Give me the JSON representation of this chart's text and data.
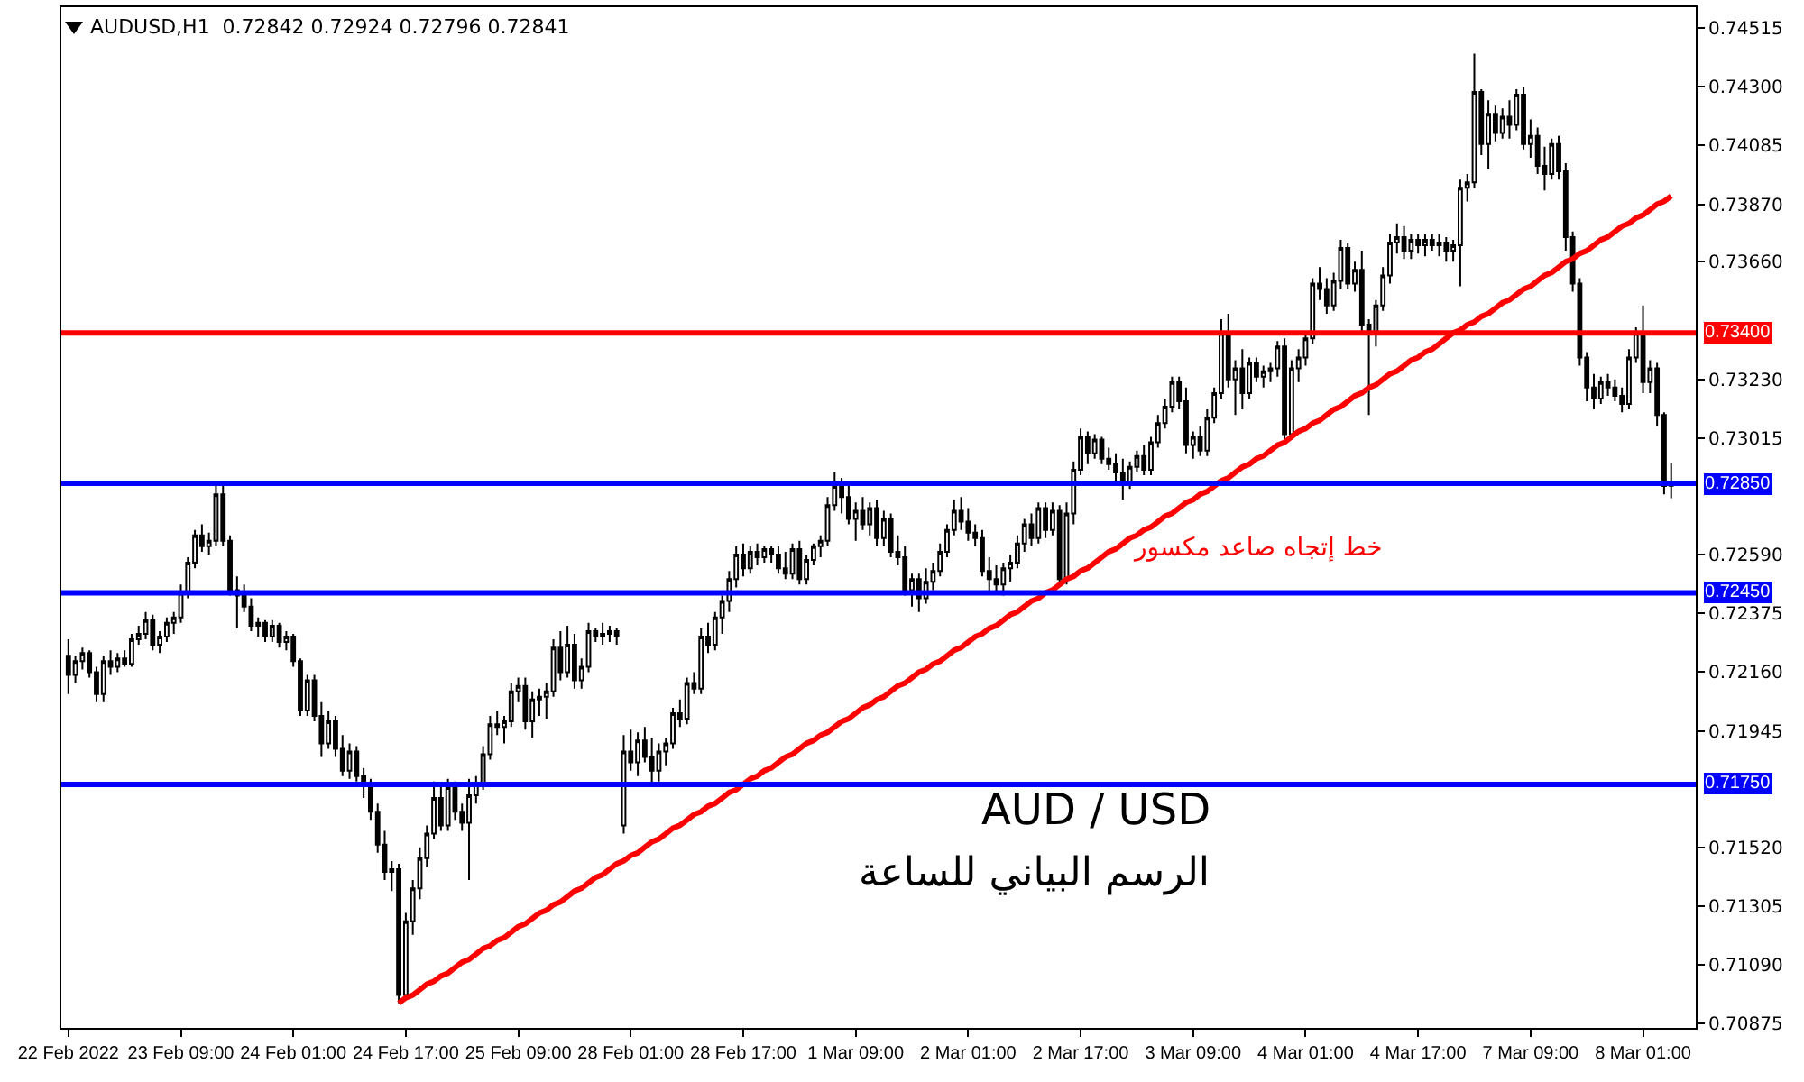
{
  "chart_data": {
    "type": "candlestick",
    "title": "AUDUSD,H1  0.72842 0.72924 0.72796 0.72841",
    "categories": [
      "22 Feb 2022",
      null,
      null,
      null,
      null,
      null,
      null,
      null,
      null,
      null,
      null,
      null,
      null,
      null,
      null,
      null,
      "23 Feb 09:00",
      null,
      null,
      null,
      null,
      null,
      null,
      null,
      null,
      null,
      null,
      null,
      null,
      null,
      null,
      null,
      "24 Feb 01:00",
      null,
      null,
      null,
      null,
      null,
      null,
      null,
      null,
      null,
      null,
      null,
      null,
      null,
      null,
      null,
      "24 Feb 17:00",
      null,
      null,
      null,
      null,
      null,
      null,
      null,
      null,
      null,
      null,
      null,
      null,
      null,
      null,
      null,
      "25 Feb 09:00",
      null,
      null,
      null,
      null,
      null,
      null,
      null,
      null,
      null,
      null,
      null,
      null,
      null,
      null,
      null,
      "28 Feb 01:00",
      null,
      null,
      null,
      null,
      null,
      null,
      null,
      null,
      null,
      null,
      null,
      null,
      null,
      null,
      null,
      "28 Feb 17:00",
      null,
      null,
      null,
      null,
      null,
      null,
      null,
      null,
      null,
      null,
      null,
      null,
      null,
      null,
      null,
      "1 Mar 09:00",
      null,
      null,
      null,
      null,
      null,
      null,
      null,
      null,
      null,
      null,
      null,
      null,
      null,
      null,
      null,
      "2 Mar 01:00",
      null,
      null,
      null,
      null,
      null,
      null,
      null,
      null,
      null,
      null,
      null,
      null,
      null,
      null,
      null,
      "2 Mar 17:00",
      null,
      null,
      null,
      null,
      null,
      null,
      null,
      null,
      null,
      null,
      null,
      null,
      null,
      null,
      null,
      "3 Mar 09:00",
      null,
      null,
      null,
      null,
      null,
      null,
      null,
      null,
      null,
      null,
      null,
      null,
      null,
      null,
      null,
      "4 Mar 01:00",
      null,
      null,
      null,
      null,
      null,
      null,
      null,
      null,
      null,
      null,
      null,
      null,
      null,
      null,
      null,
      "4 Mar 17:00",
      null,
      null,
      null,
      null,
      null,
      null,
      null,
      null,
      null,
      null,
      null,
      null,
      null,
      null,
      null,
      "7 Mar 09:00",
      null,
      null,
      null,
      null,
      null,
      null,
      null,
      null,
      null,
      null,
      null,
      null,
      null,
      null,
      null,
      "8 Mar 01:00",
      null,
      null,
      null,
      null
    ],
    "ohlc": [
      [
        0.7222,
        0.7228,
        0.7208,
        0.7215
      ],
      [
        0.7215,
        0.7222,
        0.7212,
        0.722
      ],
      [
        0.722,
        0.7225,
        0.7217,
        0.7223
      ],
      [
        0.7223,
        0.7224,
        0.7214,
        0.7216
      ],
      [
        0.7216,
        0.7218,
        0.7205,
        0.7208
      ],
      [
        0.7208,
        0.7222,
        0.7205,
        0.722
      ],
      [
        0.722,
        0.7224,
        0.7215,
        0.7218
      ],
      [
        0.7218,
        0.7223,
        0.7216,
        0.7221
      ],
      [
        0.7221,
        0.7224,
        0.7218,
        0.7219
      ],
      [
        0.7219,
        0.723,
        0.7218,
        0.7228
      ],
      [
        0.7228,
        0.7233,
        0.7226,
        0.723
      ],
      [
        0.723,
        0.7238,
        0.7228,
        0.7235
      ],
      [
        0.7235,
        0.7237,
        0.7224,
        0.7226
      ],
      [
        0.7226,
        0.7231,
        0.7223,
        0.7229
      ],
      [
        0.7229,
        0.7236,
        0.7227,
        0.7234
      ],
      [
        0.7234,
        0.7238,
        0.723,
        0.7236
      ],
      [
        0.7236,
        0.7248,
        0.7234,
        0.7245
      ],
      [
        0.7245,
        0.7258,
        0.7243,
        0.7256
      ],
      [
        0.7256,
        0.7268,
        0.7254,
        0.7266
      ],
      [
        0.7266,
        0.727,
        0.726,
        0.7262
      ],
      [
        0.7262,
        0.7267,
        0.7259,
        0.7264
      ],
      [
        0.7264,
        0.7284,
        0.7262,
        0.7281
      ],
      [
        0.7281,
        0.7284,
        0.7262,
        0.7264
      ],
      [
        0.7264,
        0.7266,
        0.7244,
        0.7246
      ],
      [
        0.7246,
        0.7251,
        0.7232,
        0.7244
      ],
      [
        0.7244,
        0.7248,
        0.7238,
        0.724
      ],
      [
        0.724,
        0.7243,
        0.7231,
        0.7233
      ],
      [
        0.7233,
        0.7236,
        0.7229,
        0.7234
      ],
      [
        0.7234,
        0.7235,
        0.7227,
        0.7229
      ],
      [
        0.7229,
        0.7235,
        0.7227,
        0.7233
      ],
      [
        0.7233,
        0.7234,
        0.7225,
        0.7227
      ],
      [
        0.7227,
        0.7231,
        0.7224,
        0.7229
      ],
      [
        0.7229,
        0.723,
        0.7218,
        0.722
      ],
      [
        0.722,
        0.7221,
        0.72,
        0.7202
      ],
      [
        0.7202,
        0.7215,
        0.72,
        0.7213
      ],
      [
        0.7213,
        0.7215,
        0.7198,
        0.72
      ],
      [
        0.72,
        0.7205,
        0.7185,
        0.719
      ],
      [
        0.719,
        0.7202,
        0.7188,
        0.7198
      ],
      [
        0.7198,
        0.72,
        0.7185,
        0.7188
      ],
      [
        0.7188,
        0.7193,
        0.7178,
        0.718
      ],
      [
        0.718,
        0.719,
        0.7177,
        0.7187
      ],
      [
        0.7187,
        0.7189,
        0.7176,
        0.7178
      ],
      [
        0.7178,
        0.7181,
        0.717,
        0.7175
      ],
      [
        0.7175,
        0.7177,
        0.7162,
        0.7165
      ],
      [
        0.7165,
        0.7168,
        0.715,
        0.7153
      ],
      [
        0.7153,
        0.7158,
        0.714,
        0.7143
      ],
      [
        0.7143,
        0.7147,
        0.7136,
        0.7144
      ],
      [
        0.7144,
        0.7146,
        0.7095,
        0.7098
      ],
      [
        0.7098,
        0.7128,
        0.7096,
        0.7125
      ],
      [
        0.7125,
        0.714,
        0.712,
        0.7137
      ],
      [
        0.7137,
        0.7152,
        0.7133,
        0.7148
      ],
      [
        0.7148,
        0.716,
        0.7145,
        0.7157
      ],
      [
        0.7157,
        0.7176,
        0.7155,
        0.717
      ],
      [
        0.717,
        0.7175,
        0.7158,
        0.716
      ],
      [
        0.716,
        0.7177,
        0.7158,
        0.7174
      ],
      [
        0.7174,
        0.7176,
        0.7162,
        0.7165
      ],
      [
        0.7165,
        0.7168,
        0.7158,
        0.7161
      ],
      [
        0.7161,
        0.7177,
        0.714,
        0.7171
      ],
      [
        0.7171,
        0.7178,
        0.7168,
        0.7175
      ],
      [
        0.7175,
        0.7189,
        0.7173,
        0.7186
      ],
      [
        0.7186,
        0.72,
        0.7184,
        0.7197
      ],
      [
        0.7197,
        0.7202,
        0.7193,
        0.7196
      ],
      [
        0.7196,
        0.72,
        0.719,
        0.7198
      ],
      [
        0.7198,
        0.7212,
        0.7196,
        0.7209
      ],
      [
        0.7209,
        0.7214,
        0.7205,
        0.7211
      ],
      [
        0.7211,
        0.7214,
        0.7195,
        0.7198
      ],
      [
        0.7198,
        0.7209,
        0.7192,
        0.7206
      ],
      [
        0.7206,
        0.721,
        0.72,
        0.7207
      ],
      [
        0.7207,
        0.7212,
        0.7199,
        0.7209
      ],
      [
        0.7209,
        0.7228,
        0.7207,
        0.7225
      ],
      [
        0.7225,
        0.7231,
        0.7213,
        0.7216
      ],
      [
        0.7216,
        0.7233,
        0.7214,
        0.7226
      ],
      [
        0.7226,
        0.723,
        0.721,
        0.7213
      ],
      [
        0.7213,
        0.7221,
        0.721,
        0.7218
      ],
      [
        0.7218,
        0.7234,
        0.7216,
        0.7231
      ],
      [
        0.7231,
        0.7232,
        0.7227,
        0.7229
      ],
      [
        0.7229,
        0.7234,
        0.7226,
        0.723
      ],
      [
        0.723,
        0.7233,
        0.7227,
        0.7231
      ],
      [
        0.7231,
        0.7232,
        0.7226,
        0.7229
      ],
      [
        0.716,
        0.7193,
        0.7157,
        0.7187
      ],
      [
        0.7187,
        0.7195,
        0.718,
        0.7183
      ],
      [
        0.7183,
        0.7194,
        0.7178,
        0.7191
      ],
      [
        0.7191,
        0.7196,
        0.7183,
        0.7185
      ],
      [
        0.7185,
        0.7192,
        0.7174,
        0.718
      ],
      [
        0.718,
        0.719,
        0.7176,
        0.7187
      ],
      [
        0.7187,
        0.7192,
        0.7182,
        0.719
      ],
      [
        0.719,
        0.7203,
        0.7188,
        0.7201
      ],
      [
        0.7201,
        0.7206,
        0.7196,
        0.7199
      ],
      [
        0.7199,
        0.7214,
        0.7197,
        0.7212
      ],
      [
        0.7212,
        0.7216,
        0.7208,
        0.721
      ],
      [
        0.721,
        0.7232,
        0.7208,
        0.7229
      ],
      [
        0.7229,
        0.7234,
        0.7223,
        0.7226
      ],
      [
        0.7226,
        0.7238,
        0.7224,
        0.7236
      ],
      [
        0.7236,
        0.7244,
        0.723,
        0.7242
      ],
      [
        0.7242,
        0.7253,
        0.7238,
        0.725
      ],
      [
        0.725,
        0.7262,
        0.7247,
        0.7259
      ],
      [
        0.7259,
        0.7263,
        0.7251,
        0.7254
      ],
      [
        0.7254,
        0.7262,
        0.7252,
        0.726
      ],
      [
        0.726,
        0.7263,
        0.7255,
        0.7258
      ],
      [
        0.7258,
        0.7262,
        0.7256,
        0.7261
      ],
      [
        0.7261,
        0.7262,
        0.7256,
        0.7259
      ],
      [
        0.7259,
        0.7262,
        0.7252,
        0.7254
      ],
      [
        0.7254,
        0.726,
        0.725,
        0.7252
      ],
      [
        0.7252,
        0.7263,
        0.725,
        0.7261
      ],
      [
        0.7261,
        0.7264,
        0.7248,
        0.725
      ],
      [
        0.725,
        0.7259,
        0.7248,
        0.7257
      ],
      [
        0.7257,
        0.7263,
        0.7255,
        0.7262
      ],
      [
        0.7262,
        0.7266,
        0.7258,
        0.7264
      ],
      [
        0.7264,
        0.728,
        0.7262,
        0.7277
      ],
      [
        0.7277,
        0.7289,
        0.7275,
        0.7284
      ],
      [
        0.7284,
        0.7287,
        0.7274,
        0.728
      ],
      [
        0.728,
        0.7286,
        0.727,
        0.7272
      ],
      [
        0.7272,
        0.7278,
        0.7264,
        0.7275
      ],
      [
        0.7275,
        0.728,
        0.7268,
        0.727
      ],
      [
        0.727,
        0.7278,
        0.7266,
        0.7276
      ],
      [
        0.7276,
        0.7279,
        0.7262,
        0.7265
      ],
      [
        0.7265,
        0.7275,
        0.7262,
        0.7272
      ],
      [
        0.7272,
        0.7274,
        0.7258,
        0.726
      ],
      [
        0.726,
        0.7266,
        0.7255,
        0.7258
      ],
      [
        0.7258,
        0.7262,
        0.7244,
        0.7246
      ],
      [
        0.7246,
        0.7252,
        0.724,
        0.725
      ],
      [
        0.725,
        0.7252,
        0.7238,
        0.7243
      ],
      [
        0.7243,
        0.7254,
        0.7241,
        0.7249
      ],
      [
        0.7249,
        0.7256,
        0.7246,
        0.7253
      ],
      [
        0.7253,
        0.7263,
        0.7251,
        0.726
      ],
      [
        0.726,
        0.727,
        0.7258,
        0.7268
      ],
      [
        0.7268,
        0.7279,
        0.7266,
        0.7275
      ],
      [
        0.7275,
        0.728,
        0.7268,
        0.7271
      ],
      [
        0.7271,
        0.7276,
        0.7264,
        0.7267
      ],
      [
        0.7267,
        0.727,
        0.7262,
        0.7265
      ],
      [
        0.7265,
        0.7268,
        0.7251,
        0.7253
      ],
      [
        0.7253,
        0.7258,
        0.7245,
        0.725
      ],
      [
        0.725,
        0.7255,
        0.7245,
        0.7248
      ],
      [
        0.7248,
        0.7256,
        0.7244,
        0.7254
      ],
      [
        0.7254,
        0.7259,
        0.7249,
        0.7256
      ],
      [
        0.7256,
        0.7266,
        0.7254,
        0.7263
      ],
      [
        0.7263,
        0.7272,
        0.726,
        0.727
      ],
      [
        0.727,
        0.7274,
        0.7262,
        0.7265
      ],
      [
        0.7265,
        0.7278,
        0.7263,
        0.7276
      ],
      [
        0.7276,
        0.7278,
        0.7265,
        0.7268
      ],
      [
        0.7268,
        0.7278,
        0.7266,
        0.7275
      ],
      [
        0.7275,
        0.7277,
        0.7248,
        0.725
      ],
      [
        0.725,
        0.7278,
        0.7248,
        0.7274
      ],
      [
        0.7274,
        0.7293,
        0.727,
        0.729
      ],
      [
        0.729,
        0.7305,
        0.7288,
        0.7302
      ],
      [
        0.7302,
        0.7304,
        0.7292,
        0.7296
      ],
      [
        0.7296,
        0.7303,
        0.7294,
        0.7301
      ],
      [
        0.7301,
        0.7302,
        0.7292,
        0.7294
      ],
      [
        0.7294,
        0.7298,
        0.729,
        0.7292
      ],
      [
        0.7292,
        0.7296,
        0.7286,
        0.7289
      ],
      [
        0.7289,
        0.7294,
        0.7279,
        0.7285
      ],
      [
        0.7285,
        0.7293,
        0.7283,
        0.7291
      ],
      [
        0.7291,
        0.7297,
        0.7289,
        0.7295
      ],
      [
        0.7295,
        0.7299,
        0.7288,
        0.729
      ],
      [
        0.729,
        0.7302,
        0.7288,
        0.73
      ],
      [
        0.73,
        0.731,
        0.7298,
        0.7307
      ],
      [
        0.7307,
        0.7316,
        0.7305,
        0.7313
      ],
      [
        0.7313,
        0.7324,
        0.7311,
        0.7322
      ],
      [
        0.7322,
        0.7324,
        0.7312,
        0.7315
      ],
      [
        0.7315,
        0.732,
        0.7296,
        0.7299
      ],
      [
        0.7299,
        0.7304,
        0.7294,
        0.7302
      ],
      [
        0.7302,
        0.7306,
        0.7295,
        0.7297
      ],
      [
        0.7297,
        0.7312,
        0.7295,
        0.7309
      ],
      [
        0.7309,
        0.732,
        0.7307,
        0.7318
      ],
      [
        0.7318,
        0.7345,
        0.7316,
        0.734
      ],
      [
        0.734,
        0.7347,
        0.732,
        0.7323
      ],
      [
        0.7323,
        0.733,
        0.731,
        0.7327
      ],
      [
        0.7327,
        0.7334,
        0.7312,
        0.7318
      ],
      [
        0.7318,
        0.7331,
        0.7316,
        0.7329
      ],
      [
        0.7329,
        0.7331,
        0.7322,
        0.7324
      ],
      [
        0.7324,
        0.7328,
        0.732,
        0.7326
      ],
      [
        0.7326,
        0.7329,
        0.7322,
        0.7327
      ],
      [
        0.7327,
        0.7337,
        0.7324,
        0.7335
      ],
      [
        0.7335,
        0.7338,
        0.73,
        0.7303
      ],
      [
        0.7303,
        0.733,
        0.7301,
        0.7327
      ],
      [
        0.7327,
        0.7334,
        0.7322,
        0.7331
      ],
      [
        0.7331,
        0.734,
        0.7328,
        0.7338
      ],
      [
        0.7338,
        0.736,
        0.7336,
        0.7358
      ],
      [
        0.7358,
        0.7364,
        0.7352,
        0.7356
      ],
      [
        0.7356,
        0.736,
        0.7347,
        0.735
      ],
      [
        0.735,
        0.7362,
        0.7348,
        0.7359
      ],
      [
        0.7359,
        0.7374,
        0.7356,
        0.7371
      ],
      [
        0.7371,
        0.7373,
        0.7356,
        0.7358
      ],
      [
        0.7358,
        0.7366,
        0.7355,
        0.7363
      ],
      [
        0.7363,
        0.737,
        0.734,
        0.7343
      ],
      [
        0.7343,
        0.7345,
        0.731,
        0.734
      ],
      [
        0.734,
        0.7352,
        0.7335,
        0.735
      ],
      [
        0.735,
        0.7364,
        0.7348,
        0.7361
      ],
      [
        0.7361,
        0.7376,
        0.7358,
        0.7373
      ],
      [
        0.7373,
        0.738,
        0.7369,
        0.7375
      ],
      [
        0.7375,
        0.7379,
        0.7367,
        0.737
      ],
      [
        0.737,
        0.7376,
        0.7367,
        0.7374
      ],
      [
        0.7374,
        0.7376,
        0.7369,
        0.7372
      ],
      [
        0.7372,
        0.7376,
        0.7368,
        0.7374
      ],
      [
        0.7374,
        0.7376,
        0.737,
        0.7372
      ],
      [
        0.7372,
        0.7376,
        0.7368,
        0.7373
      ],
      [
        0.7373,
        0.7375,
        0.7366,
        0.737
      ],
      [
        0.737,
        0.7374,
        0.7366,
        0.7372
      ],
      [
        0.7372,
        0.7396,
        0.7357,
        0.7393
      ],
      [
        0.7393,
        0.7398,
        0.7388,
        0.7395
      ],
      [
        0.7395,
        0.7442,
        0.7393,
        0.7428
      ],
      [
        0.7428,
        0.7429,
        0.7405,
        0.7409
      ],
      [
        0.7409,
        0.7425,
        0.74,
        0.742
      ],
      [
        0.742,
        0.7423,
        0.741,
        0.7413
      ],
      [
        0.7413,
        0.7422,
        0.7411,
        0.7419
      ],
      [
        0.7419,
        0.7425,
        0.7411,
        0.7416
      ],
      [
        0.7416,
        0.7429,
        0.7414,
        0.7427
      ],
      [
        0.7427,
        0.743,
        0.7407,
        0.7409
      ],
      [
        0.7409,
        0.7418,
        0.7404,
        0.7412
      ],
      [
        0.7412,
        0.7415,
        0.7398,
        0.7401
      ],
      [
        0.7401,
        0.7408,
        0.7392,
        0.7398
      ],
      [
        0.7398,
        0.7411,
        0.7396,
        0.7409
      ],
      [
        0.7409,
        0.7412,
        0.7396,
        0.7399
      ],
      [
        0.7399,
        0.7402,
        0.737,
        0.7375
      ],
      [
        0.7375,
        0.7377,
        0.7355,
        0.7358
      ],
      [
        0.7358,
        0.736,
        0.7328,
        0.7331
      ],
      [
        0.7331,
        0.7333,
        0.7315,
        0.732
      ],
      [
        0.732,
        0.7325,
        0.7312,
        0.7316
      ],
      [
        0.7316,
        0.7324,
        0.7314,
        0.7322
      ],
      [
        0.7322,
        0.7325,
        0.7317,
        0.732
      ],
      [
        0.732,
        0.7323,
        0.7315,
        0.7317
      ],
      [
        0.7317,
        0.732,
        0.7311,
        0.7314
      ],
      [
        0.7314,
        0.7334,
        0.7312,
        0.7331
      ],
      [
        0.7331,
        0.7342,
        0.7329,
        0.734
      ],
      [
        0.734,
        0.735,
        0.7318,
        0.7322
      ],
      [
        0.7322,
        0.733,
        0.7318,
        0.7327
      ],
      [
        0.7327,
        0.7329,
        0.7306,
        0.731
      ],
      [
        0.731,
        0.7311,
        0.7281,
        0.7284
      ],
      [
        0.72842,
        0.72924,
        0.72796,
        0.72841
      ]
    ],
    "series": [
      {
        "type": "line",
        "color": "#ff0000",
        "values": [
          null,
          null,
          null,
          null,
          null,
          null,
          null,
          null,
          null,
          null,
          null,
          null,
          null,
          null,
          null,
          null,
          null,
          null,
          null,
          null,
          null,
          null,
          null,
          null,
          null,
          null,
          null,
          null,
          null,
          null,
          null,
          null,
          null,
          null,
          null,
          null,
          null,
          null,
          null,
          null,
          null,
          null,
          null,
          null,
          null,
          null,
          null,
          0.7095,
          0.7097,
          0.7098,
          0.71,
          0.7102,
          0.7103,
          0.7105,
          0.7106,
          0.7108,
          0.711,
          0.7111,
          0.7113,
          0.7115,
          0.7116,
          0.7118,
          0.7119,
          0.7121,
          0.7123,
          0.7124,
          0.7126,
          0.7128,
          0.7129,
          0.7131,
          0.7132,
          0.7134,
          0.7136,
          0.7137,
          0.7139,
          0.7141,
          0.7142,
          0.7144,
          0.7146,
          0.7147,
          0.7149,
          0.715,
          0.7152,
          0.7154,
          0.7155,
          0.7157,
          0.7159,
          0.716,
          0.7162,
          0.7164,
          0.7165,
          0.7167,
          0.7168,
          0.717,
          0.7172,
          0.7173,
          0.7175,
          0.7177,
          0.7178,
          0.718,
          0.7181,
          0.7183,
          0.7185,
          0.7186,
          0.7188,
          0.719,
          0.7191,
          0.7193,
          0.7194,
          0.7196,
          0.7198,
          0.7199,
          0.7201,
          0.7203,
          0.7204,
          0.7206,
          0.7207,
          0.7209,
          0.7211,
          0.7212,
          0.7214,
          0.7216,
          0.7217,
          0.7219,
          0.722,
          0.7222,
          0.7224,
          0.7225,
          0.7227,
          0.7229,
          0.723,
          0.7232,
          0.7233,
          0.7235,
          0.7237,
          0.7238,
          0.724,
          0.7242,
          0.7243,
          0.7245,
          0.7246,
          0.7248,
          0.725,
          0.7251,
          0.7253,
          0.7254,
          0.7256,
          0.7258,
          0.726,
          0.7261,
          0.7263,
          0.7265,
          0.7266,
          0.7268,
          0.7269,
          0.7271,
          0.7273,
          0.7274,
          0.7276,
          0.7278,
          0.7279,
          0.7281,
          0.7282,
          0.7284,
          0.7286,
          0.7287,
          0.7289,
          0.7291,
          0.7292,
          0.7294,
          0.7295,
          0.7297,
          0.7299,
          0.73,
          0.7302,
          0.7304,
          0.7305,
          0.7307,
          0.7308,
          0.731,
          0.7312,
          0.7313,
          0.7315,
          0.7317,
          0.7318,
          0.732,
          0.7321,
          0.7323,
          0.7325,
          0.7326,
          0.7328,
          0.733,
          0.7331,
          0.7333,
          0.7334,
          0.7336,
          0.7338,
          0.734,
          0.7341,
          0.7343,
          0.7344,
          0.7346,
          0.7347,
          0.7349,
          0.7351,
          0.7352,
          0.7354,
          0.7356,
          0.7357,
          0.7359,
          0.7361,
          0.7362,
          0.7364,
          0.7366,
          0.7367,
          0.7369,
          0.737,
          0.7372,
          0.7374,
          0.7375,
          0.7377,
          0.7379,
          0.738,
          0.7382,
          0.7383,
          0.7385,
          0.7387,
          0.7388,
          0.739
        ]
      }
    ],
    "ylim": [
      0.7086,
      0.7459
    ],
    "yticks": [
      {
        "value": 0.74515,
        "label": "0.74515"
      },
      {
        "value": 0.743,
        "label": "0.74300"
      },
      {
        "value": 0.74085,
        "label": "0.74085"
      },
      {
        "value": 0.7387,
        "label": "0.73870"
      },
      {
        "value": 0.7366,
        "label": "0.73660"
      },
      {
        "value": 0.7323,
        "label": "0.73230"
      },
      {
        "value": 0.73015,
        "label": "0.73015"
      },
      {
        "value": 0.7259,
        "label": "0.72590"
      },
      {
        "value": 0.72375,
        "label": "0.72375"
      },
      {
        "value": 0.7216,
        "label": "0.72160"
      },
      {
        "value": 0.71945,
        "label": "0.71945"
      },
      {
        "value": 0.7152,
        "label": "0.71520"
      },
      {
        "value": 0.71305,
        "label": "0.71305"
      },
      {
        "value": 0.7109,
        "label": "0.71090"
      },
      {
        "value": 0.70875,
        "label": "0.70875"
      }
    ],
    "ref_lines": [
      {
        "axis": "y",
        "value": 0.734,
        "label": "0.73400",
        "color": "#ff0000"
      },
      {
        "axis": "y",
        "value": 0.7285,
        "label": "0.72850",
        "color": "#0000ff"
      },
      {
        "axis": "y",
        "value": 0.7245,
        "label": "0.72450",
        "color": "#0000ff"
      },
      {
        "axis": "y",
        "value": 0.7175,
        "label": "0.71750",
        "color": "#0000ff"
      }
    ],
    "annotations": [
      "خط إتجاه صاعد مكسور",
      "AUD / USD",
      "الرسم البياني للساعة"
    ],
    "grid": false
  }
}
